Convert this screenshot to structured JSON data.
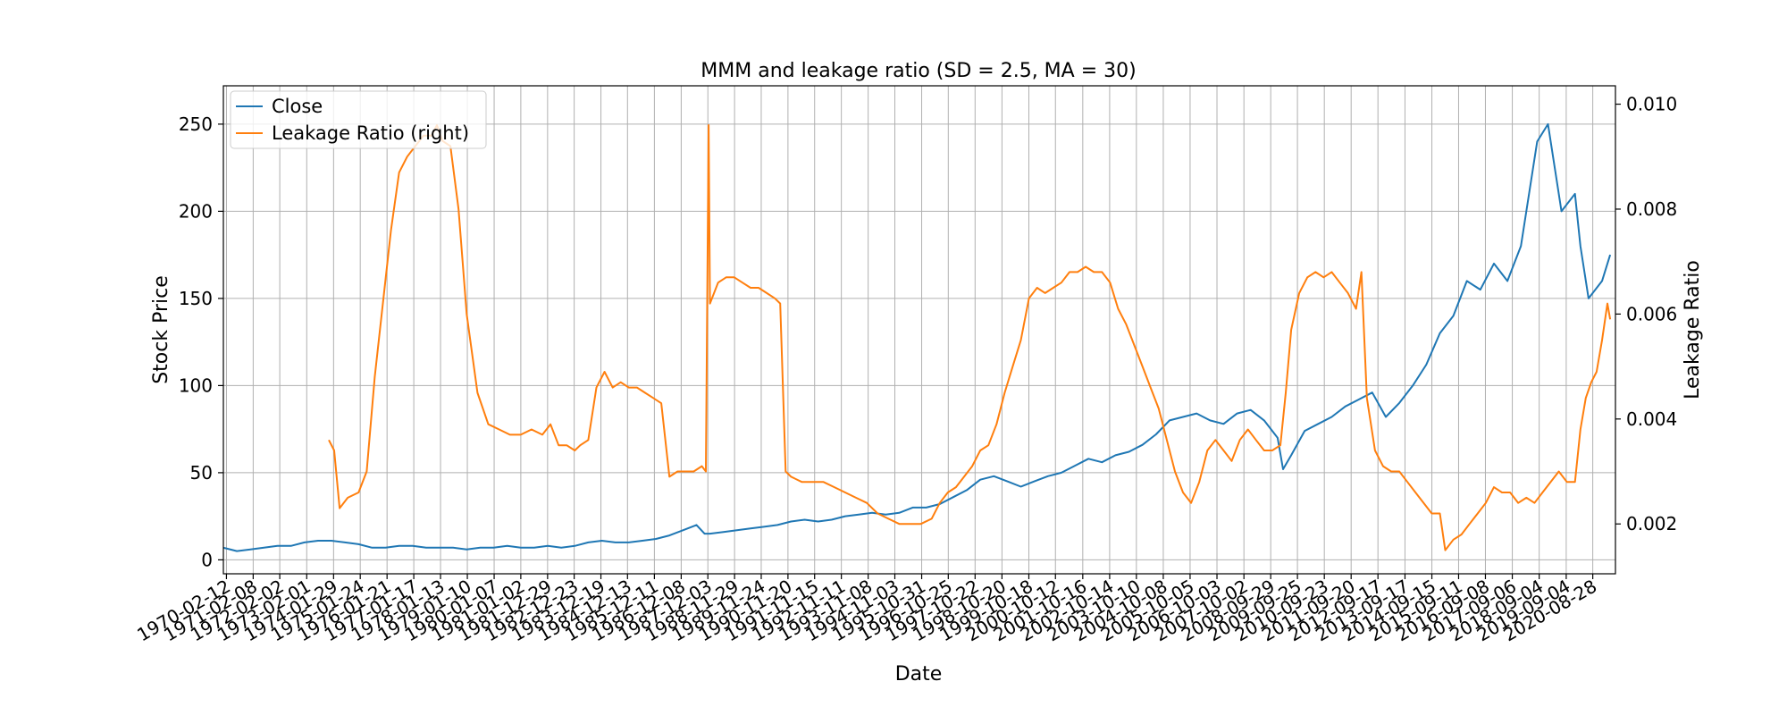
{
  "chart_data": {
    "type": "line",
    "title": "MMM and leakage ratio (SD = 2.5, MA = 30)",
    "xlabel": "Date",
    "ylabel": "Stock Price",
    "ylabel_right": "Leakage Ratio",
    "grid": true,
    "legend_position": "top-left",
    "xlim": [
      "1970-01-01",
      "2021-06-30"
    ],
    "ylim": [
      -8,
      272
    ],
    "ylim_right": [
      0.00105,
      0.01035
    ],
    "y_ticks": [
      0,
      50,
      100,
      150,
      200,
      250
    ],
    "y_ticks_right": [
      0.002,
      0.004,
      0.006,
      0.008,
      0.01
    ],
    "y_tick_labels_right": [
      "0.002",
      "0.004",
      "0.006",
      "0.008",
      "0.010"
    ],
    "x_ticks": [
      "1970-02-12",
      "1971-02-08",
      "1972-02-02",
      "1973-02-01",
      "1974-01-29",
      "1975-01-24",
      "1976-01-21",
      "1977-01-17",
      "1978-01-13",
      "1979-01-10",
      "1980-01-07",
      "1981-01-02",
      "1981-12-29",
      "1982-12-23",
      "1983-12-19",
      "1984-12-13",
      "1985-12-11",
      "1986-12-08",
      "1987-12-03",
      "1988-11-29",
      "1989-11-24",
      "1990-11-20",
      "1991-11-15",
      "1992-11-11",
      "1993-11-08",
      "1994-11-03",
      "1995-10-31",
      "1996-10-25",
      "1997-10-22",
      "1998-10-20",
      "1999-10-18",
      "2000-10-12",
      "2001-10-16",
      "2002-10-14",
      "2003-10-10",
      "2004-10-08",
      "2005-10-05",
      "2006-10-03",
      "2007-10-02",
      "2008-09-29",
      "2009-09-25",
      "2010-09-23",
      "2011-09-20",
      "2012-09-17",
      "2013-09-17",
      "2014-09-15",
      "2015-09-11",
      "2016-09-08",
      "2017-09-06",
      "2018-09-04",
      "2019-09-04",
      "2020-08-28"
    ],
    "series": [
      {
        "name": "Close",
        "axis": "left",
        "color": "#1f77b4",
        "x": [
          1970.0,
          1970.5,
          1971.0,
          1971.5,
          1972.0,
          1972.5,
          1973.0,
          1973.5,
          1974.0,
          1974.5,
          1975.0,
          1975.5,
          1976.0,
          1976.5,
          1977.0,
          1977.5,
          1978.0,
          1978.5,
          1979.0,
          1979.5,
          1980.0,
          1980.5,
          1981.0,
          1981.5,
          1982.0,
          1982.5,
          1983.0,
          1983.5,
          1984.0,
          1984.5,
          1985.0,
          1985.5,
          1986.0,
          1986.5,
          1987.0,
          1987.5,
          1987.8,
          1988.0,
          1988.5,
          1989.0,
          1989.5,
          1990.0,
          1990.5,
          1991.0,
          1991.5,
          1992.0,
          1992.5,
          1993.0,
          1993.5,
          1994.0,
          1994.5,
          1995.0,
          1995.5,
          1996.0,
          1996.5,
          1997.0,
          1997.5,
          1998.0,
          1998.5,
          1999.0,
          1999.5,
          2000.0,
          2000.5,
          2001.0,
          2001.5,
          2002.0,
          2002.5,
          2003.0,
          2003.5,
          2004.0,
          2004.5,
          2005.0,
          2005.5,
          2006.0,
          2006.5,
          2007.0,
          2007.5,
          2008.0,
          2008.5,
          2009.0,
          2009.2,
          2009.5,
          2010.0,
          2010.5,
          2011.0,
          2011.5,
          2012.0,
          2012.5,
          2013.0,
          2013.5,
          2014.0,
          2014.5,
          2015.0,
          2015.5,
          2016.0,
          2016.5,
          2017.0,
          2017.5,
          2018.0,
          2018.3,
          2018.6,
          2019.0,
          2019.5,
          2020.0,
          2020.2,
          2020.5,
          2021.0,
          2021.3
        ],
        "values": [
          7,
          5,
          6,
          7,
          8,
          8,
          10,
          11,
          11,
          10,
          9,
          7,
          7,
          8,
          8,
          7,
          7,
          7,
          6,
          7,
          7,
          8,
          7,
          7,
          8,
          7,
          8,
          10,
          11,
          10,
          10,
          11,
          12,
          14,
          17,
          20,
          15,
          15,
          16,
          17,
          18,
          19,
          20,
          22,
          23,
          22,
          23,
          25,
          26,
          27,
          26,
          27,
          30,
          30,
          32,
          36,
          40,
          46,
          48,
          45,
          42,
          45,
          48,
          50,
          54,
          58,
          56,
          60,
          62,
          66,
          72,
          80,
          82,
          84,
          80,
          78,
          84,
          86,
          80,
          70,
          52,
          60,
          74,
          78,
          82,
          88,
          92,
          96,
          82,
          90,
          100,
          112,
          130,
          140,
          160,
          155,
          170,
          160,
          180,
          210,
          240,
          250,
          200,
          210,
          180,
          150,
          160,
          175
        ]
      },
      {
        "name": "Leakage Ratio (right)",
        "axis": "right",
        "color": "#ff7f0e",
        "x": [
          1973.9,
          1974.1,
          1974.3,
          1974.6,
          1975.0,
          1975.3,
          1975.6,
          1975.9,
          1976.2,
          1976.5,
          1976.8,
          1977.1,
          1977.4,
          1977.7,
          1977.9,
          1978.1,
          1978.4,
          1978.7,
          1979.0,
          1979.4,
          1979.8,
          1980.2,
          1980.6,
          1981.0,
          1981.4,
          1981.8,
          1982.1,
          1982.4,
          1982.7,
          1983.0,
          1983.2,
          1983.5,
          1983.8,
          1984.1,
          1984.4,
          1984.7,
          1985.0,
          1985.3,
          1985.6,
          1985.9,
          1986.2,
          1986.5,
          1986.8,
          1987.1,
          1987.4,
          1987.7,
          1987.85,
          1987.95,
          1988.0,
          1988.3,
          1988.6,
          1988.9,
          1989.2,
          1989.5,
          1989.8,
          1990.1,
          1990.4,
          1990.6,
          1990.8,
          1991.0,
          1991.4,
          1991.8,
          1992.2,
          1992.6,
          1993.0,
          1993.4,
          1993.8,
          1994.2,
          1994.6,
          1995.0,
          1995.4,
          1995.8,
          1996.2,
          1996.5,
          1996.8,
          1997.1,
          1997.4,
          1997.7,
          1998.0,
          1998.3,
          1998.6,
          1998.9,
          1999.2,
          1999.5,
          1999.8,
          2000.1,
          2000.4,
          2000.7,
          2001.0,
          2001.3,
          2001.6,
          2001.9,
          2002.2,
          2002.5,
          2002.8,
          2003.1,
          2003.4,
          2003.7,
          2004.0,
          2004.3,
          2004.6,
          2004.9,
          2005.2,
          2005.5,
          2005.8,
          2006.1,
          2006.4,
          2006.7,
          2007.0,
          2007.3,
          2007.6,
          2007.9,
          2008.2,
          2008.5,
          2008.8,
          2009.1,
          2009.3,
          2009.5,
          2009.8,
          2010.1,
          2010.4,
          2010.7,
          2011.0,
          2011.3,
          2011.6,
          2011.9,
          2012.1,
          2012.3,
          2012.6,
          2012.9,
          2013.2,
          2013.5,
          2013.8,
          2014.1,
          2014.4,
          2014.7,
          2015.0,
          2015.2,
          2015.5,
          2015.8,
          2016.1,
          2016.4,
          2016.7,
          2017.0,
          2017.3,
          2017.6,
          2017.9,
          2018.2,
          2018.5,
          2018.8,
          2019.1,
          2019.4,
          2019.7,
          2020.0,
          2020.2,
          2020.4,
          2020.6,
          2020.8,
          2021.0,
          2021.2,
          2021.3
        ],
        "values": [
          0.0036,
          0.0034,
          0.0023,
          0.0025,
          0.0026,
          0.003,
          0.0048,
          0.0062,
          0.0076,
          0.0087,
          0.009,
          0.0092,
          0.0094,
          0.0094,
          0.0096,
          0.0093,
          0.0092,
          0.008,
          0.006,
          0.0045,
          0.0039,
          0.0038,
          0.0037,
          0.0037,
          0.0038,
          0.0037,
          0.0039,
          0.0035,
          0.0035,
          0.0034,
          0.0035,
          0.0036,
          0.0046,
          0.0049,
          0.0046,
          0.0047,
          0.0046,
          0.0046,
          0.0045,
          0.0044,
          0.0043,
          0.0029,
          0.003,
          0.003,
          0.003,
          0.0031,
          0.003,
          0.0096,
          0.0062,
          0.0066,
          0.0067,
          0.0067,
          0.0066,
          0.0065,
          0.0065,
          0.0064,
          0.0063,
          0.0062,
          0.003,
          0.0029,
          0.0028,
          0.0028,
          0.0028,
          0.0027,
          0.0026,
          0.0025,
          0.0024,
          0.0022,
          0.0021,
          0.002,
          0.002,
          0.002,
          0.0021,
          0.0024,
          0.0026,
          0.0027,
          0.0029,
          0.0031,
          0.0034,
          0.0035,
          0.0039,
          0.0045,
          0.005,
          0.0055,
          0.0063,
          0.0065,
          0.0064,
          0.0065,
          0.0066,
          0.0068,
          0.0068,
          0.0069,
          0.0068,
          0.0068,
          0.0066,
          0.0061,
          0.0058,
          0.0054,
          0.005,
          0.0046,
          0.0042,
          0.0036,
          0.003,
          0.0026,
          0.0024,
          0.0028,
          0.0034,
          0.0036,
          0.0034,
          0.0032,
          0.0036,
          0.0038,
          0.0036,
          0.0034,
          0.0034,
          0.0035,
          0.0045,
          0.0057,
          0.0064,
          0.0067,
          0.0068,
          0.0067,
          0.0068,
          0.0066,
          0.0064,
          0.0061,
          0.0068,
          0.0044,
          0.0034,
          0.0031,
          0.003,
          0.003,
          0.0028,
          0.0026,
          0.0024,
          0.0022,
          0.0022,
          0.0015,
          0.0017,
          0.0018,
          0.002,
          0.0022,
          0.0024,
          0.0027,
          0.0026,
          0.0026,
          0.0024,
          0.0025,
          0.0024,
          0.0026,
          0.0028,
          0.003,
          0.0028,
          0.0028,
          0.0038,
          0.0044,
          0.0047,
          0.0049,
          0.0055,
          0.0062,
          0.0059
        ]
      }
    ]
  }
}
